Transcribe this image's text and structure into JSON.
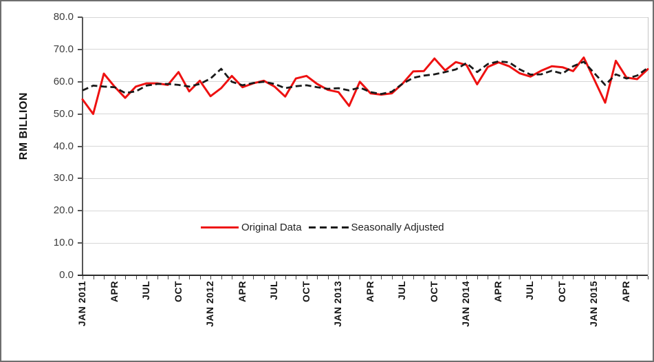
{
  "chart_data": {
    "type": "line",
    "title": "",
    "xlabel": "",
    "ylabel": "RM BILLION",
    "ylim": [
      0,
      80
    ],
    "ytick_step": 10,
    "ytick_labels": [
      "80.0",
      "70.0",
      "60.0",
      "50.0",
      "40.0",
      "30.0",
      "20.0",
      "10.0",
      "0.0"
    ],
    "grid": "horizontal",
    "legend_position": "inside-bottom-center",
    "x_tick_interval": 3,
    "x_tick_labels": [
      "JAN 2011",
      "APR",
      "JUL",
      "OCT",
      "JAN 2012",
      "APR",
      "JUL",
      "OCT",
      "JAN 2013",
      "APR",
      "JUL",
      "OCT",
      "JAN 2014",
      "APR",
      "JUL",
      "OCT",
      "JAN 2015",
      "APR"
    ],
    "categories": [
      "JAN 2011",
      "FEB 2011",
      "MAR 2011",
      "APR 2011",
      "MAY 2011",
      "JUN 2011",
      "JUL 2011",
      "AUG 2011",
      "SEP 2011",
      "OCT 2011",
      "NOV 2011",
      "DEC 2011",
      "JAN 2012",
      "FEB 2012",
      "MAR 2012",
      "APR 2012",
      "MAY 2012",
      "JUN 2012",
      "JUL 2012",
      "AUG 2012",
      "SEP 2012",
      "OCT 2012",
      "NOV 2012",
      "DEC 2012",
      "JAN 2013",
      "FEB 2013",
      "MAR 2013",
      "APR 2013",
      "MAY 2013",
      "JUN 2013",
      "JUL 2013",
      "AUG 2013",
      "SEP 2013",
      "OCT 2013",
      "NOV 2013",
      "DEC 2013",
      "JAN 2014",
      "FEB 2014",
      "MAR 2014",
      "APR 2014",
      "MAY 2014",
      "JUN 2014",
      "JUL 2014",
      "AUG 2014",
      "SEP 2014",
      "OCT 2014",
      "NOV 2014",
      "DEC 2014",
      "JAN 2015",
      "FEB 2015",
      "MAR 2015",
      "APR 2015",
      "MAY 2015",
      "JUN 2015"
    ],
    "series": [
      {
        "name": "Original Data",
        "color": "#ee1111",
        "style": "solid",
        "values": [
          54.5,
          50.0,
          62.5,
          58.5,
          55.0,
          58.5,
          59.5,
          59.5,
          59.0,
          63.0,
          57.0,
          60.3,
          55.5,
          58.0,
          61.8,
          58.3,
          59.5,
          60.3,
          58.5,
          55.4,
          61.0,
          61.8,
          59.3,
          57.5,
          56.8,
          52.5,
          60.0,
          56.4,
          56.0,
          56.4,
          59.4,
          63.2,
          63.3,
          67.2,
          63.5,
          66.1,
          65.2,
          59.2,
          64.6,
          66.0,
          64.8,
          62.6,
          61.6,
          63.4,
          64.8,
          64.5,
          63.3,
          67.5,
          60.5,
          53.5,
          66.5,
          61.3,
          60.8,
          63.9
        ]
      },
      {
        "name": "Seasonally Adjusted",
        "color": "#1a1a1a",
        "style": "dashed",
        "values": [
          57.3,
          58.8,
          58.5,
          58.3,
          56.5,
          57.0,
          58.8,
          59.3,
          59.3,
          59.0,
          58.5,
          59.3,
          61.0,
          64.0,
          60.0,
          58.9,
          59.6,
          60.0,
          59.3,
          58.0,
          58.6,
          58.9,
          58.3,
          57.8,
          58.0,
          57.3,
          58.2,
          56.8,
          56.2,
          56.9,
          59.4,
          61.2,
          61.9,
          62.3,
          63.0,
          63.8,
          65.8,
          63.0,
          65.5,
          66.3,
          66.0,
          63.8,
          62.2,
          62.3,
          63.4,
          62.5,
          64.8,
          66.2,
          62.6,
          59.0,
          62.3,
          61.0,
          61.9,
          64.3
        ]
      }
    ]
  },
  "colors": {
    "background": "#ffffff",
    "frame_border": "#6e6e6e",
    "gridline": "#d6d6d6",
    "axis": "#555555"
  }
}
